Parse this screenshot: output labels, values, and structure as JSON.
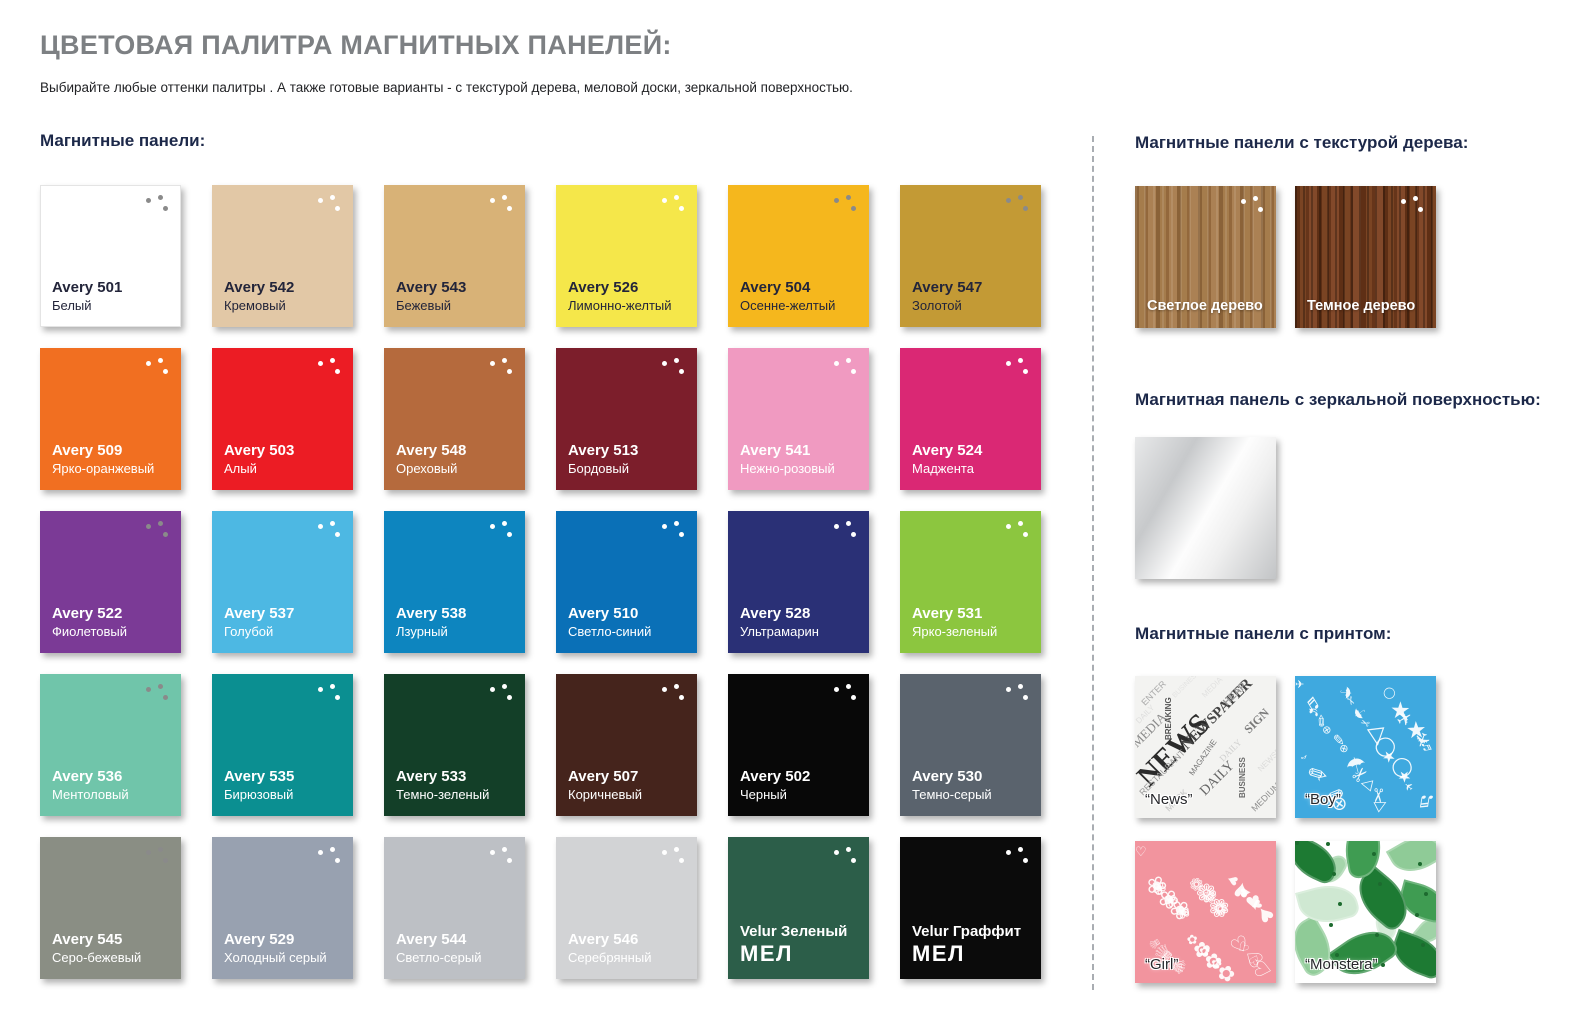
{
  "page": {
    "title": "ЦВЕТОВАЯ ПАЛИТРА МАГНИТНЫХ ПАНЕЛЕЙ:",
    "subtitle": "Выбирайте любые оттенки палитры . А также готовые варианты - с текстурой дерева, меловой доски, зеркальной поверхностью."
  },
  "panels_section": {
    "heading": "Магнитные панели:",
    "swatches": [
      {
        "code": "Avery 501",
        "name": "Белый",
        "color": "#ffffff",
        "text": "dark",
        "dots": "gray"
      },
      {
        "code": "Avery 542",
        "name": "Кремовый",
        "color": "#e2c8a6",
        "text": "dark",
        "dots": "white"
      },
      {
        "code": "Avery 543",
        "name": "Бежевый",
        "color": "#d8b277",
        "text": "dark",
        "dots": "white"
      },
      {
        "code": "Avery 526",
        "name": "Лимонно-желтый",
        "color": "#f5e74a",
        "text": "dark",
        "dots": "white"
      },
      {
        "code": "Avery 504",
        "name": "Осенне-желтый",
        "color": "#f5b71d",
        "text": "dark",
        "dots": "gray"
      },
      {
        "code": "Avery 547",
        "name": "Золотой",
        "color": "#c39a35",
        "text": "dark",
        "dots": "gray"
      },
      {
        "code": "Avery 509",
        "name": "Ярко-оранжевый",
        "color": "#f16f21",
        "text": "light",
        "dots": "white"
      },
      {
        "code": "Avery 503",
        "name": "Алый",
        "color": "#ec1c24",
        "text": "light",
        "dots": "white"
      },
      {
        "code": "Avery 548",
        "name": "Ореховый",
        "color": "#b56a3d",
        "text": "light",
        "dots": "white"
      },
      {
        "code": "Avery 513",
        "name": "Бордовый",
        "color": "#7c1e2b",
        "text": "light",
        "dots": "white"
      },
      {
        "code": "Avery 541",
        "name": "Нежно-розовый",
        "color": "#f09ac1",
        "text": "light",
        "dots": "white"
      },
      {
        "code": "Avery 524",
        "name": "Маджента",
        "color": "#da2874",
        "text": "light",
        "dots": "white"
      },
      {
        "code": "Avery 522",
        "name": "Фиолетовый",
        "color": "#7b3a96",
        "text": "light",
        "dots": "gray"
      },
      {
        "code": "Avery 537",
        "name": "Голубой",
        "color": "#4db8e3",
        "text": "light",
        "dots": "white"
      },
      {
        "code": "Avery 538",
        "name": "Лзурный",
        "color": "#0d85bf",
        "text": "light",
        "dots": "white"
      },
      {
        "code": "Avery 510",
        "name": "Светло-синий",
        "color": "#0a70b7",
        "text": "light",
        "dots": "white"
      },
      {
        "code": "Avery 528",
        "name": "Ультрамарин",
        "color": "#2a3076",
        "text": "light",
        "dots": "white"
      },
      {
        "code": "Avery 531",
        "name": "Ярко-зеленый",
        "color": "#8cc63f",
        "text": "light",
        "dots": "white"
      },
      {
        "code": "Avery 536",
        "name": "Ментоловый",
        "color": "#70c5aa",
        "text": "light",
        "dots": "gray"
      },
      {
        "code": "Avery 535",
        "name": "Бирюзовый",
        "color": "#0b8f91",
        "text": "light",
        "dots": "white"
      },
      {
        "code": "Avery 533",
        "name": "Темно-зеленый",
        "color": "#133f28",
        "text": "light",
        "dots": "white"
      },
      {
        "code": "Avery 507",
        "name": "Коричневый",
        "color": "#45241c",
        "text": "light",
        "dots": "white"
      },
      {
        "code": "Avery 502",
        "name": "Черный",
        "color": "#080808",
        "text": "light",
        "dots": "white"
      },
      {
        "code": "Avery 530",
        "name": "Темно-серый",
        "color": "#5a636d",
        "text": "light",
        "dots": "white"
      },
      {
        "code": "Avery 545",
        "name": "Серо-бежевый",
        "color": "#8a8e84",
        "text": "light",
        "dots": "gray"
      },
      {
        "code": "Avery 529",
        "name": "Холодный серый",
        "color": "#98a1b0",
        "text": "light",
        "dots": "white"
      },
      {
        "code": "Avery 544",
        "name": "Светло-серый",
        "color": "#bdc0c5",
        "text": "light",
        "dots": "white"
      },
      {
        "code": "Avery 546",
        "name": "Серебрянный",
        "color": "#d2d3d5",
        "text": "light",
        "dots": "white"
      },
      {
        "code": "Velur Зеленый",
        "name": "",
        "logo": "МЕЛ",
        "color": "#2c5e49",
        "text": "light",
        "dots": "white"
      },
      {
        "code": "Velur Граффит",
        "name": "",
        "logo": "МЕЛ",
        "color": "#0b0b0b",
        "text": "light",
        "dots": "white"
      }
    ]
  },
  "wood_section": {
    "heading": "Магнитные панели с текстурой дерева:",
    "items": [
      {
        "label": "Светлое дерево"
      },
      {
        "label": "Темное дерево"
      }
    ]
  },
  "mirror_section": {
    "heading": "Магнитная панель с зеркальной поверхностью:"
  },
  "print_section": {
    "heading": "Магнитные панели с принтом:",
    "items": [
      {
        "label": "“News”"
      },
      {
        "label": "“Boy”"
      },
      {
        "label": "“Girl”"
      },
      {
        "label": "“Monstera”"
      }
    ],
    "news_words": [
      "NEWS",
      "NEWSPAPER",
      "DAILY",
      "MEDIA",
      "BREAKING",
      "MAGAZINE",
      "RESTAURANT",
      "BUSINESS",
      "SIGN",
      "ENTER",
      "HEAP",
      "MEDIUM",
      "MOCK",
      "DAILY"
    ],
    "boy_glyphs": [
      "✈",
      "✏",
      "✂",
      "★",
      "♪",
      "☂",
      "◯",
      "♬",
      "⊕",
      "△"
    ],
    "girl_glyphs": [
      "♡",
      "❀",
      "✿",
      "♥",
      "♕",
      "❁"
    ],
    "accent_colors": {
      "boy_bg": "#3fa9df",
      "girl_bg": "#f2949e",
      "monstera_greens": [
        "#1d7a33",
        "#3f9c52",
        "#8fcb97",
        "#cfe8d2",
        "#2c8a40"
      ]
    }
  }
}
